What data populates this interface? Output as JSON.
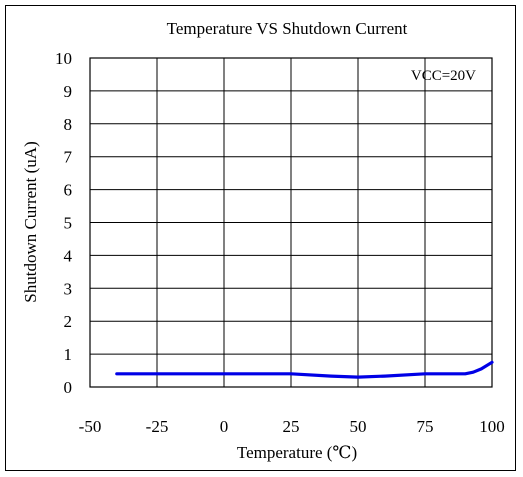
{
  "chart_data": {
    "type": "line",
    "title": "Temperature VS Shutdown Current",
    "xlabel": "Temperature (℃)",
    "ylabel": "Shutdown Current (uA)",
    "annotation": "VCC=20V",
    "xlim": [
      -50,
      100
    ],
    "ylim": [
      0,
      10
    ],
    "xticks": [
      -50,
      -25,
      0,
      25,
      50,
      75,
      100
    ],
    "yticks": [
      0,
      1,
      2,
      3,
      4,
      5,
      6,
      7,
      8,
      9,
      10
    ],
    "grid": true,
    "series": [
      {
        "color": "#0000e6",
        "x": [
          -40,
          -25,
          0,
          25,
          40,
          50,
          60,
          75,
          90,
          93,
          96,
          100
        ],
        "y": [
          0.4,
          0.4,
          0.4,
          0.4,
          0.33,
          0.3,
          0.33,
          0.4,
          0.4,
          0.45,
          0.55,
          0.75
        ]
      }
    ]
  }
}
